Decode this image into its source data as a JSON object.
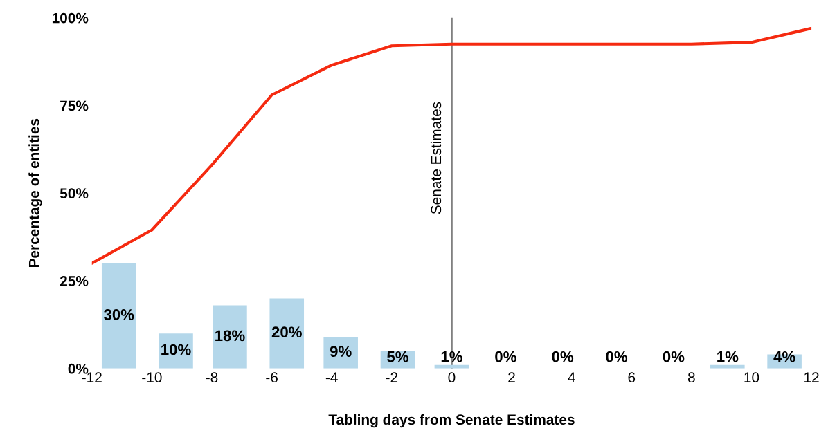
{
  "chart_data": {
    "type": "bar",
    "xlabel": "Tabling days from Senate Estimates",
    "ylabel": "Percentage of entities",
    "xlim": [
      -12,
      12
    ],
    "xticks": [
      -12,
      -10,
      -8,
      -6,
      -4,
      -2,
      0,
      2,
      4,
      6,
      8,
      10,
      12
    ],
    "ylim": [
      0,
      100
    ],
    "yticks": [
      {
        "value": 0,
        "label": "0%"
      },
      {
        "value": 25,
        "label": "25%"
      },
      {
        "value": 50,
        "label": "50%"
      },
      {
        "value": 75,
        "label": "75%"
      },
      {
        "value": 100,
        "label": "100%"
      }
    ],
    "grid": false,
    "legend": false,
    "series": [
      {
        "color": "#b4d7ea",
        "x": [
          -11.1,
          -9.2,
          -7.4,
          -5.5,
          -3.7,
          -1.8,
          0.0,
          1.8,
          3.7,
          5.5,
          7.4,
          9.2,
          11.1
        ],
        "values": [
          30,
          10,
          18,
          20,
          9,
          5,
          1,
          0,
          0,
          0,
          0,
          1,
          4
        ],
        "value_labels": [
          "30%",
          "10%",
          "18%",
          "20%",
          "9%",
          "5%",
          "1%",
          "0%",
          "0%",
          "0%",
          "0%",
          "1%",
          "4%"
        ]
      },
      {
        "type": "line",
        "x": [
          -12,
          -10,
          -8,
          -6,
          -4,
          -2,
          0,
          2,
          4,
          6,
          8,
          10,
          12
        ],
        "values": [
          30,
          39.5,
          58,
          78,
          86.5,
          92,
          92.5,
          92.5,
          92.5,
          92.5,
          92.5,
          93,
          97
        ],
        "color": "#f52a10"
      }
    ],
    "ref_lines": [
      {
        "axis": "x",
        "value": 0,
        "label": "Senate Estimates",
        "color": "#808080"
      }
    ]
  }
}
